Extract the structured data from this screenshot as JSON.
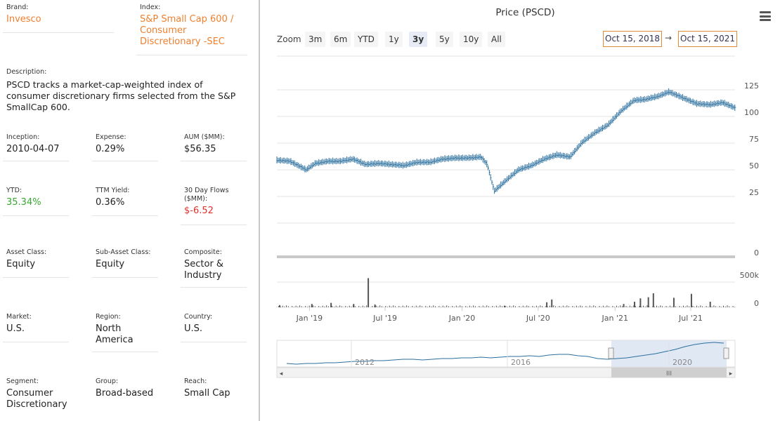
{
  "fields": {
    "brand": {
      "label": "Brand:",
      "value": "Invesco"
    },
    "index": {
      "label": "Index:",
      "value": "S&P Small Cap 600 / Consumer Discretionary -SEC"
    },
    "description": {
      "label": "Description:",
      "value": "PSCD tracks a market-cap-weighted index of consumer discretionary firms selected from the S&P SmallCap 600."
    },
    "inception": {
      "label": "Inception:",
      "value": "2010-04-07"
    },
    "expense": {
      "label": "Expense:",
      "value": "0.29%"
    },
    "aum": {
      "label": "AUM ($MM):",
      "value": "$56.35"
    },
    "ytd": {
      "label": "YTD:",
      "value": "35.34%"
    },
    "ttm_yield": {
      "label": "TTM Yield:",
      "value": "0.36%"
    },
    "flows": {
      "label": "30 Day Flows ($MM):",
      "value": "$-6.52"
    },
    "asset_class": {
      "label": "Asset Class:",
      "value": "Equity"
    },
    "sub_asset_class": {
      "label": "Sub-Asset Class:",
      "value": "Equity"
    },
    "composite": {
      "label": "Composite:",
      "value": "Sector & Industry"
    },
    "market": {
      "label": "Market:",
      "value": "U.S."
    },
    "region": {
      "label": "Region:",
      "value": "North America"
    },
    "country": {
      "label": "Country:",
      "value": "U.S."
    },
    "segment": {
      "label": "Segment:",
      "value": "Consumer Discretionary"
    },
    "group": {
      "label": "Group:",
      "value": "Broad-based"
    },
    "reach": {
      "label": "Reach:",
      "value": "Small Cap"
    }
  },
  "colors": {
    "orange": "#f07f2e",
    "green": "#35a82e",
    "red": "#e0302a",
    "price": "#2b6f9e",
    "volume": "#555555",
    "navigator_fill": "#d6e0f0"
  },
  "chart": {
    "title": "Price (PSCD)",
    "zoom_label": "Zoom",
    "zoom_buttons": [
      "3m",
      "6m",
      "YTD",
      "1y",
      "3y",
      "5y",
      "10y",
      "All"
    ],
    "selected_zoom": "3y",
    "from_date": "Oct 15, 2018",
    "arrow": "→",
    "to_date": "Oct 15, 2021",
    "price_ticks": [
      "125",
      "100",
      "75",
      "50",
      "25",
      "0"
    ],
    "volume_ticks": [
      "500k",
      "0"
    ],
    "x_ticks": [
      "Jan '19",
      "Jul '19",
      "Jan '20",
      "Jul '20",
      "Jan '21",
      "Jul '21"
    ],
    "navigator_ticks": [
      "2012",
      "2016",
      "2020"
    ],
    "scroll_grip": "III",
    "scroll_left": "◂",
    "scroll_right": "▸"
  },
  "chart_data": {
    "type": "line",
    "title": "Price (PSCD)",
    "series": [
      {
        "name": "PSCD",
        "x": [
          "2018-10-15",
          "2018-11-15",
          "2018-12-24",
          "2019-01-15",
          "2019-02-15",
          "2019-03-15",
          "2019-04-15",
          "2019-05-15",
          "2019-06-15",
          "2019-07-15",
          "2019-08-15",
          "2019-09-15",
          "2019-10-15",
          "2019-11-15",
          "2019-12-15",
          "2020-01-15",
          "2020-02-15",
          "2020-03-01",
          "2020-03-18",
          "2020-04-15",
          "2020-05-15",
          "2020-06-15",
          "2020-07-15",
          "2020-08-15",
          "2020-09-15",
          "2020-10-15",
          "2020-11-15",
          "2020-12-15",
          "2021-01-15",
          "2021-02-15",
          "2021-03-15",
          "2021-04-15",
          "2021-05-10",
          "2021-06-15",
          "2021-07-15",
          "2021-08-15",
          "2021-09-15",
          "2021-10-15"
        ],
        "values": [
          59,
          58,
          50,
          56,
          58,
          58,
          60,
          55,
          56,
          55,
          54,
          57,
          57,
          60,
          61,
          61,
          62,
          55,
          30,
          40,
          50,
          54,
          60,
          64,
          62,
          76,
          85,
          92,
          105,
          115,
          116,
          119,
          123,
          117,
          112,
          111,
          113,
          108
        ]
      }
    ],
    "volume": {
      "x": [
        "2018-10-20",
        "2019-01-05",
        "2019-02-20",
        "2019-04-15",
        "2019-05-20",
        "2019-06-05",
        "2020-04-10",
        "2020-07-20",
        "2020-08-01",
        "2021-01-20",
        "2021-02-15",
        "2021-03-01",
        "2021-03-20",
        "2021-04-01",
        "2021-05-20",
        "2021-07-01",
        "2021-08-15"
      ],
      "values": [
        40000,
        60000,
        80000,
        60000,
        520000,
        50000,
        30000,
        90000,
        140000,
        60000,
        100000,
        160000,
        180000,
        250000,
        170000,
        240000,
        100000
      ]
    },
    "ylim": [
      0,
      125
    ],
    "volume_ylim": [
      0,
      500000
    ],
    "xlim": [
      "2018-10-15",
      "2021-10-15"
    ],
    "grid": true
  }
}
